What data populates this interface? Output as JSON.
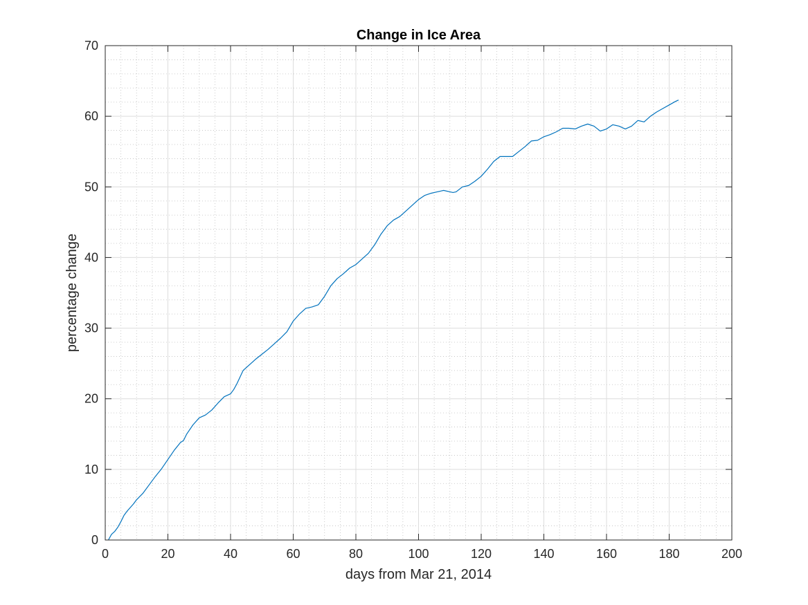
{
  "chart_data": {
    "type": "line",
    "title": "Change in Ice Area",
    "xlabel": "days from Mar 21, 2014",
    "ylabel": "percentage change",
    "xlim": [
      0,
      200
    ],
    "ylim": [
      0,
      70
    ],
    "xticks": [
      0,
      20,
      40,
      60,
      80,
      100,
      120,
      140,
      160,
      180,
      200
    ],
    "yticks": [
      0,
      10,
      20,
      30,
      40,
      50,
      60,
      70
    ],
    "grid": true,
    "minor_grid": true,
    "series": [
      {
        "color": "#0072BD",
        "x": [
          1,
          2,
          3,
          4,
          5,
          6,
          7,
          8,
          9,
          10,
          12,
          14,
          16,
          18,
          20,
          22,
          24,
          25,
          26,
          28,
          30,
          32,
          34,
          36,
          38,
          40,
          41,
          42,
          44,
          46,
          48,
          50,
          52,
          54,
          56,
          58,
          60,
          62,
          64,
          66,
          68,
          70,
          72,
          74,
          76,
          78,
          80,
          82,
          84,
          86,
          88,
          90,
          92,
          94,
          96,
          98,
          100,
          102,
          104,
          106,
          108,
          110,
          111,
          112,
          114,
          116,
          118,
          120,
          122,
          124,
          126,
          128,
          130,
          132,
          134,
          136,
          138,
          140,
          142,
          144,
          146,
          148,
          150,
          152,
          154,
          156,
          158,
          160,
          162,
          164,
          166,
          168,
          170,
          172,
          174,
          176,
          178,
          180,
          182,
          183
        ],
        "y": [
          0,
          0.8,
          1.2,
          1.8,
          2.6,
          3.5,
          4.1,
          4.6,
          5.1,
          5.7,
          6.6,
          7.8,
          9.0,
          10.1,
          11.4,
          12.7,
          13.8,
          14.1,
          15.0,
          16.3,
          17.3,
          17.7,
          18.4,
          19.4,
          20.3,
          20.7,
          21.3,
          22.1,
          24.0,
          24.8,
          25.6,
          26.3,
          27.0,
          27.8,
          28.6,
          29.5,
          31.0,
          32.0,
          32.8,
          33.0,
          33.3,
          34.5,
          36.0,
          37.0,
          37.7,
          38.5,
          39.0,
          39.8,
          40.6,
          41.8,
          43.3,
          44.5,
          45.3,
          45.8,
          46.6,
          47.4,
          48.2,
          48.8,
          49.1,
          49.3,
          49.5,
          49.3,
          49.2,
          49.3,
          50.0,
          50.2,
          50.8,
          51.5,
          52.5,
          53.6,
          54.3,
          54.3,
          54.3,
          55.0,
          55.7,
          56.5,
          56.6,
          57.1,
          57.4,
          57.8,
          58.3,
          58.3,
          58.2,
          58.6,
          58.9,
          58.6,
          57.9,
          58.2,
          58.8,
          58.6,
          58.2,
          58.6,
          59.4,
          59.2,
          60.0,
          60.6,
          61.1,
          61.6,
          62.1,
          62.3
        ]
      }
    ]
  }
}
